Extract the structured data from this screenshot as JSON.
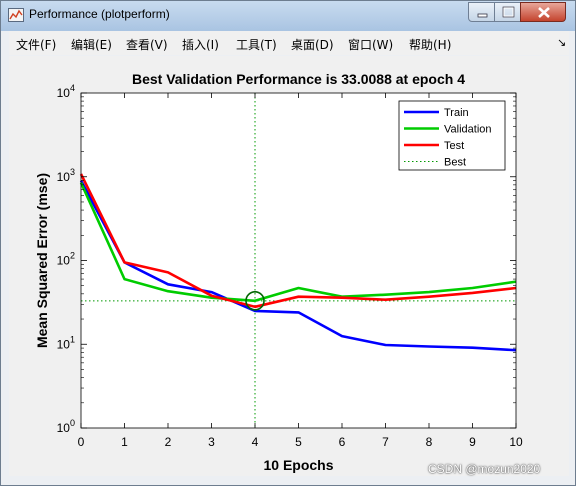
{
  "window": {
    "title": "Performance (plotperform)"
  },
  "menu": {
    "items": [
      "文件(F)",
      "编辑(E)",
      "查看(V)",
      "插入(I)",
      "工具(T)",
      "桌面(D)",
      "窗口(W)",
      "帮助(H)"
    ],
    "dock_glyph": "↘"
  },
  "watermark": "CSDN @mozun2020",
  "colors": {
    "train": "#0000ff",
    "validation": "#00cc00",
    "test": "#ff0000",
    "best": "#009900"
  },
  "chart_data": {
    "type": "line",
    "title": "Best Validation Performance is 33.0088 at epoch 4",
    "xlabel": "10 Epochs",
    "ylabel": "Mean Squared Error  (mse)",
    "xlim": [
      0,
      10
    ],
    "ylim": [
      1,
      10000
    ],
    "yscale": "log",
    "xticks": [
      "0",
      "1",
      "2",
      "3",
      "4",
      "5",
      "6",
      "7",
      "8",
      "9",
      "10"
    ],
    "yticks": [
      {
        "base": "10",
        "exp": "0",
        "v": 1
      },
      {
        "base": "10",
        "exp": "1",
        "v": 10
      },
      {
        "base": "10",
        "exp": "2",
        "v": 100
      },
      {
        "base": "10",
        "exp": "3",
        "v": 1000
      },
      {
        "base": "10",
        "exp": "4",
        "v": 10000
      }
    ],
    "legend_position": "top-right",
    "grid": false,
    "x": [
      0,
      1,
      2,
      3,
      4,
      5,
      6,
      7,
      8,
      9,
      10
    ],
    "series": [
      {
        "name": "Train",
        "color": "#0000ff",
        "values": [
          900,
          95,
          52,
          42,
          25,
          24,
          12.5,
          9.8,
          9.4,
          9.1,
          8.5
        ]
      },
      {
        "name": "Validation",
        "color": "#00cc00",
        "values": [
          850,
          60,
          43,
          36,
          33,
          47,
          37,
          39,
          42,
          47,
          56
        ]
      },
      {
        "name": "Test",
        "color": "#ff0000",
        "values": [
          1080,
          95,
          72,
          38,
          28,
          37,
          36,
          34,
          37,
          41,
          47
        ]
      }
    ],
    "best": {
      "name": "Best",
      "epoch": 4,
      "value": 33.0088,
      "color": "#009900"
    }
  }
}
